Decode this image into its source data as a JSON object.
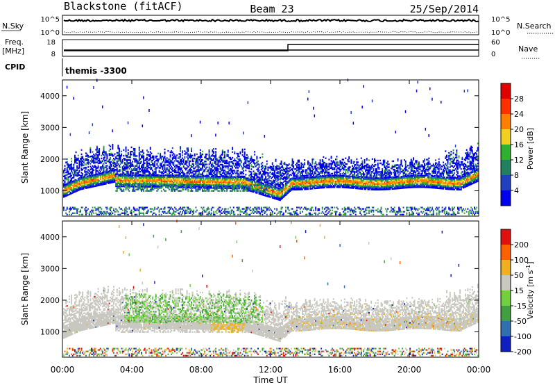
{
  "header": {
    "title": "Blackstone (fitACF)",
    "beam": "Beam 23",
    "date": "25/Sep/2014"
  },
  "top_panels": {
    "nsky_label": "N.Sky",
    "nsky_ticks": [
      "10^5",
      "10^0"
    ],
    "nsearch_label": "N.Search",
    "nsearch_ticks": [
      "10^5",
      "10^0"
    ],
    "freq_label": "Freq.",
    "freq_unit": "[MHz]",
    "freq_ticks": [
      "18",
      "8"
    ],
    "nave_label": "Nave",
    "nave_ticks": [
      "60",
      "0"
    ],
    "cpid_label": "CPID",
    "cpid_value": "themis -3300"
  },
  "chart_data": [
    {
      "type": "heatmap",
      "name": "power-panel",
      "ylabel": "Slant Range [km]",
      "y_ticks": [
        "1000",
        "2000",
        "3000",
        "4000"
      ],
      "ylim": [
        200,
        4500
      ],
      "xlim": [
        0,
        24
      ],
      "colorbar_label": "Power [dB]",
      "colorbar_ticks": [
        "4",
        "8",
        "12",
        "16",
        "20",
        "24",
        "28"
      ],
      "colors": [
        "#0000ee",
        "#2040c0",
        "#208060",
        "#30b030",
        "#f0d020",
        "#ff8000",
        "#ff3000",
        "#e00000"
      ]
    },
    {
      "type": "heatmap",
      "name": "velocity-panel",
      "ylabel": "Slant Range [km]",
      "y_ticks": [
        "1000",
        "2000",
        "3000",
        "4000"
      ],
      "ylim": [
        200,
        4500
      ],
      "xlim": [
        0,
        24
      ],
      "colorbar_label": "Velocity [m s",
      "colorbar_sup": "-1",
      "colorbar_label_end": "]",
      "colorbar_ticks": [
        "200",
        "100",
        "50",
        "15",
        "-15",
        "-50",
        "-100",
        "-200"
      ],
      "colors": [
        "#1020c0",
        "#3070b0",
        "#40a040",
        "#70d040",
        "#c8c8c0",
        "#f0b020",
        "#ff6000",
        "#e01010"
      ]
    }
  ],
  "x_axis": {
    "ticks": [
      "00:00",
      "04:00",
      "08:00",
      "12:00",
      "16:00",
      "20:00",
      "00:00"
    ],
    "label": "Time UT"
  }
}
